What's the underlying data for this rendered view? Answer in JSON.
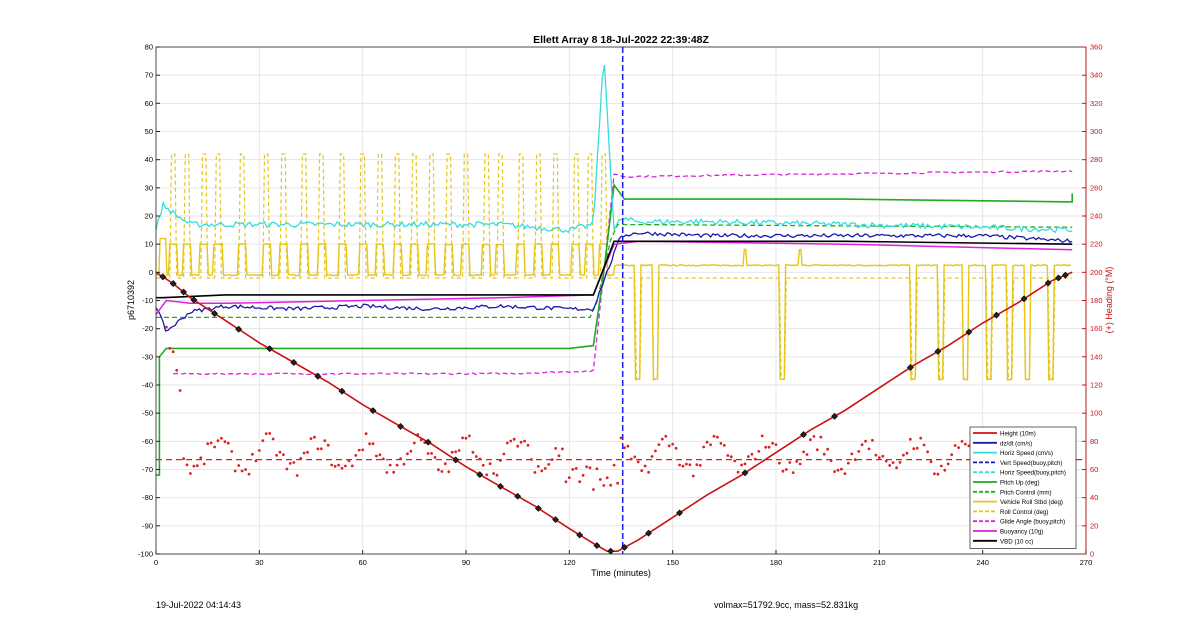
{
  "chart_data": {
    "type": "line",
    "title": "Ellett Array 8 18-Jul-2022 22:39:48Z",
    "xlabel": "Time (minutes)",
    "ylabel": "p6710392",
    "y2label": "(+) Heading (°M)",
    "xlim": [
      0,
      270
    ],
    "ylim": [
      -100,
      80
    ],
    "y2lim": [
      0,
      360
    ],
    "xticks": [
      0,
      30,
      60,
      90,
      120,
      150,
      180,
      210,
      240,
      270
    ],
    "yticks": [
      -100,
      -90,
      -80,
      -70,
      -60,
      -50,
      -40,
      -30,
      -20,
      -10,
      0,
      10,
      20,
      30,
      40,
      50,
      60,
      70,
      80
    ],
    "y2ticks": [
      0,
      20,
      40,
      60,
      80,
      100,
      120,
      140,
      160,
      180,
      200,
      220,
      240,
      260,
      280,
      300,
      320,
      340,
      360
    ],
    "grid": true,
    "legend_position": "bottom-right",
    "colors": {
      "depth": "#cc1111",
      "heading": "#dd2222",
      "cyan": "#33dddd",
      "green": "#22aa22",
      "yellow": "#e6c619",
      "magenta": "#dd22dd",
      "navy": "#1a1aaa",
      "black": "#000000"
    },
    "legend": [
      {
        "label": "Height (10m)",
        "color": "#cc1111",
        "dash": false
      },
      {
        "label": "dz/dt (cm/s)",
        "color": "#1a1aaa",
        "dash": false
      },
      {
        "label": "Horiz Speed (cm/s)",
        "color": "#33dddd",
        "dash": false
      },
      {
        "label": "Vert Speed(buoy,pitch)",
        "color": "#1a1aaa",
        "dash": true
      },
      {
        "label": "Horiz Speed(buoy,pitch)",
        "color": "#33dddd",
        "dash": true
      },
      {
        "label": "Pitch Up (deg)",
        "color": "#22aa22",
        "dash": false
      },
      {
        "label": "Pitch Control (mm)",
        "color": "#22aa22",
        "dash": true
      },
      {
        "label": "Vehicle Roll Stbd (deg)",
        "color": "#e6c619",
        "dash": false
      },
      {
        "label": "Roll Control (deg)",
        "color": "#e6c619",
        "dash": true
      },
      {
        "label": "Glide Angle (buoy,pitch)",
        "color": "#dd22dd",
        "dash": true
      },
      {
        "label": "Buoyancy (10g)",
        "color": "#dd22dd",
        "dash": false
      },
      {
        "label": "VBD (10 cc)",
        "color": "#000000",
        "dash": false
      }
    ],
    "series": [
      {
        "name": "Height (10m)",
        "x": [
          0,
          5,
          10,
          20,
          30,
          40,
          50,
          60,
          70,
          80,
          90,
          100,
          110,
          120,
          128,
          131,
          134,
          140,
          150,
          160,
          170,
          180,
          190,
          200,
          210,
          220,
          230,
          240,
          250,
          260,
          266
        ],
        "y": [
          0,
          -4,
          -9,
          -17,
          -25,
          -32,
          -39,
          -47,
          -54,
          -61,
          -69,
          -76,
          -83,
          -91,
          -97,
          -99,
          -99,
          -95,
          -87,
          -79,
          -72,
          -64,
          -56,
          -49,
          -41,
          -33,
          -26,
          -18,
          -11,
          -3,
          0
        ]
      },
      {
        "name": "dz/dt (cm/s)",
        "x": [
          0,
          3,
          10,
          20,
          40,
          60,
          80,
          100,
          120,
          127,
          130,
          135,
          140,
          160,
          200,
          240,
          266
        ],
        "y": [
          -12,
          -21,
          -14,
          -12,
          -13,
          -12,
          -13,
          -12,
          -13,
          -13,
          -3,
          13,
          14,
          13,
          13,
          13,
          11
        ]
      },
      {
        "name": "Horiz Speed (cm/s)",
        "x": [
          0,
          2,
          5,
          10,
          20,
          40,
          60,
          80,
          100,
          120,
          127,
          130,
          133,
          135,
          140,
          160,
          200,
          240,
          266
        ],
        "y": [
          15,
          24,
          21,
          17,
          17,
          17,
          17,
          17,
          17,
          15,
          17,
          78,
          15,
          19,
          18,
          18,
          17,
          16,
          15
        ]
      },
      {
        "name": "Pitch Up (deg)",
        "x": [
          0,
          1,
          1,
          3,
          20,
          60,
          100,
          120,
          127,
          130,
          133,
          136,
          200,
          266,
          266
        ],
        "y": [
          -72,
          -72,
          -30,
          -27,
          -27,
          -27,
          -27,
          -27,
          -26,
          0,
          31,
          26,
          26,
          25,
          28
        ]
      },
      {
        "name": "Pitch Control (mm)",
        "x": [
          0,
          4,
          60,
          127,
          133,
          266
        ],
        "y": [
          -16,
          -16,
          -16,
          -16,
          17,
          16
        ]
      },
      {
        "name": "Glide Angle (buoy,pitch)",
        "x": [
          5,
          20,
          60,
          100,
          127,
          133,
          136,
          200,
          266
        ],
        "y": [
          -36,
          -36,
          -36,
          -36,
          -35,
          35,
          34,
          35,
          36
        ]
      },
      {
        "name": "Buoyancy (10g)",
        "x": [
          0,
          3,
          10,
          20,
          60,
          100,
          127,
          133,
          140,
          200,
          266
        ],
        "y": [
          -15,
          -10,
          -11,
          -11,
          -10,
          -9,
          -8,
          10,
          11,
          10,
          8
        ]
      },
      {
        "name": "VBD (10 cc)",
        "x": [
          0,
          2,
          20,
          60,
          100,
          127,
          133,
          140,
          200,
          266
        ],
        "y": [
          -9,
          -9,
          -8,
          -8,
          -8,
          -8,
          11,
          11,
          11,
          10
        ]
      },
      {
        "name": "Vehicle Roll Stbd (deg)",
        "x": [
          0,
          133,
          136,
          266
        ],
        "y": [
          -2,
          -2,
          3,
          3
        ]
      },
      {
        "name": "Roll Control (deg)",
        "x": [
          0,
          133,
          136,
          266
        ],
        "y": [
          -2,
          -2,
          -2,
          -2
        ]
      },
      {
        "name": "Vert Speed(buoy,pitch)",
        "x": [
          135.5,
          135.5
        ],
        "y": [
          80,
          -100
        ]
      }
    ],
    "heading": {
      "mean": 67
    },
    "depth_markers_x": [
      2,
      5,
      8,
      11,
      17,
      24,
      33,
      40,
      47,
      54,
      63,
      71,
      79,
      87,
      94,
      100,
      105,
      111,
      116,
      123,
      128,
      132,
      136,
      143,
      152,
      171,
      188,
      197,
      219,
      227,
      236,
      244,
      252,
      259,
      262,
      264
    ],
    "roll_stbd_spikes_x": [
      5,
      9,
      14,
      18,
      25,
      32,
      37,
      43,
      48,
      54,
      60,
      65,
      70,
      75,
      80,
      85,
      90,
      96,
      100,
      106,
      111,
      116,
      122,
      126,
      130
    ],
    "roll_port_spikes_x": [
      140,
      145,
      182,
      220,
      228,
      235,
      242,
      248,
      253,
      260
    ],
    "roll_high_x": [
      171,
      187
    ]
  },
  "footer": {
    "left": "19-Jul-2022 04:14:43",
    "right": "volmax=51792.9cc, mass=52.831kg"
  }
}
